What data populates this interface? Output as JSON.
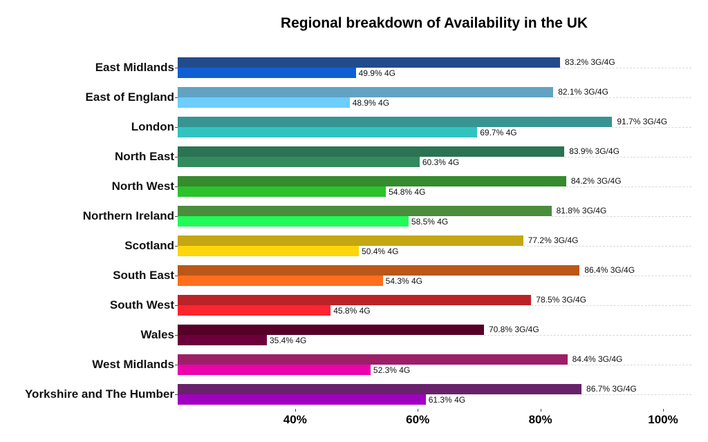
{
  "chart_data": {
    "type": "bar",
    "orientation": "horizontal",
    "title": "Regional breakdown of Availability in the UK",
    "xlabel": "",
    "ylabel": "",
    "xlim": [
      20.9,
      104
    ],
    "x_ticks": [
      "40%",
      "60%",
      "80%",
      "100%"
    ],
    "grid": "dashed horizontal at each category",
    "legend": "none (inline data labels)",
    "categories": [
      "East Midlands",
      "East of England",
      "London",
      "North East",
      "North West",
      "Northern Ireland",
      "Scotland",
      "South East",
      "South West",
      "Wales",
      "West Midlands",
      "Yorkshire and The Humber"
    ],
    "series": [
      {
        "name": "3G/4G",
        "values": [
          83.2,
          82.1,
          91.7,
          83.9,
          84.2,
          81.8,
          77.2,
          86.4,
          78.5,
          70.8,
          84.4,
          86.7
        ],
        "colors": [
          "#234b8c",
          "#62a3c3",
          "#379492",
          "#2a7353",
          "#358b2e",
          "#4a8d3c",
          "#c4a713",
          "#bb5719",
          "#bc2329",
          "#560027",
          "#9c1f68",
          "#68226b"
        ]
      },
      {
        "name": "4G",
        "values": [
          49.9,
          48.9,
          69.7,
          60.3,
          54.8,
          58.5,
          50.4,
          54.3,
          45.8,
          35.4,
          52.3,
          61.3
        ],
        "colors": [
          "#0e5fd4",
          "#6dcdfb",
          "#31c3bf",
          "#338a5e",
          "#2cc22c",
          "#20fc57",
          "#fdd50b",
          "#ff6e1c",
          "#fd252f",
          "#6b003a",
          "#eb03ab",
          "#a100c0"
        ]
      }
    ],
    "labels_3g4g": [
      "83.2% 3G/4G",
      "82.1% 3G/4G",
      "91.7% 3G/4G",
      "83.9% 3G/4G",
      "84.2% 3G/4G",
      "81.8% 3G/4G",
      "77.2% 3G/4G",
      "86.4% 3G/4G",
      "78.5% 3G/4G",
      "70.8% 3G/4G",
      "84.4% 3G/4G",
      "86.7% 3G/4G"
    ],
    "labels_4g": [
      "49.9% 4G",
      "48.9% 4G",
      "69.7% 4G",
      "60.3% 4G",
      "54.8% 4G",
      "58.5% 4G",
      "50.4% 4G",
      "54.3% 4G",
      "45.8% 4G",
      "35.4% 4G",
      "52.3% 4G",
      "61.3% 4G"
    ]
  }
}
